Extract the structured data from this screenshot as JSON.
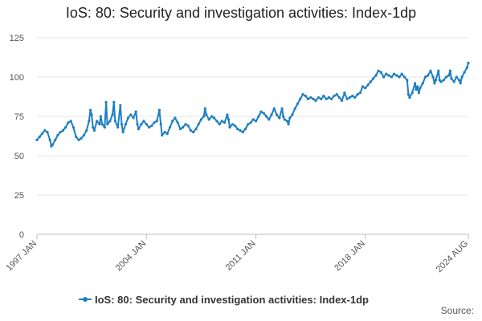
{
  "chart_data": {
    "type": "line",
    "title": "IoS: 80: Security and investigation activities: Index-1dp",
    "xlabel": "",
    "ylabel": "",
    "ylim": [
      0,
      125
    ],
    "y_ticks": [
      0,
      25,
      50,
      75,
      100,
      125
    ],
    "x_range": [
      1997.0,
      2024.583
    ],
    "x_ticks": [
      {
        "value": 1997.0,
        "label": "1997 JAN"
      },
      {
        "value": 2004.0,
        "label": "2004 JAN"
      },
      {
        "value": 2011.0,
        "label": "2011 JAN"
      },
      {
        "value": 2018.0,
        "label": "2018 JAN"
      },
      {
        "value": 2024.583,
        "label": "2024 AUG"
      }
    ],
    "grid": true,
    "legend_position": "bottom",
    "series": [
      {
        "name": "IoS: 80: Security and investigation activities: Index-1dp",
        "color": "#1f7fc0",
        "points": [
          [
            1997.0,
            60.0
          ],
          [
            1997.17,
            62.0
          ],
          [
            1997.33,
            64.0
          ],
          [
            1997.5,
            66.0
          ],
          [
            1997.67,
            65.0
          ],
          [
            1997.83,
            60.0
          ],
          [
            1997.92,
            56.0
          ],
          [
            1998.0,
            57.0
          ],
          [
            1998.17,
            60.0
          ],
          [
            1998.33,
            63.0
          ],
          [
            1998.5,
            65.0
          ],
          [
            1998.67,
            66.0
          ],
          [
            1998.83,
            68.0
          ],
          [
            1999.0,
            71.0
          ],
          [
            1999.17,
            72.0
          ],
          [
            1999.33,
            68.0
          ],
          [
            1999.5,
            62.0
          ],
          [
            1999.67,
            60.0
          ],
          [
            1999.83,
            61.0
          ],
          [
            2000.0,
            63.0
          ],
          [
            2000.17,
            66.0
          ],
          [
            2000.33,
            72.0
          ],
          [
            2000.42,
            79.0
          ],
          [
            2000.5,
            76.0
          ],
          [
            2000.58,
            68.0
          ],
          [
            2000.67,
            66.0
          ],
          [
            2000.83,
            72.0
          ],
          [
            2001.0,
            70.0
          ],
          [
            2001.08,
            75.0
          ],
          [
            2001.17,
            70.0
          ],
          [
            2001.33,
            68.0
          ],
          [
            2001.42,
            84.0
          ],
          [
            2001.5,
            70.0
          ],
          [
            2001.67,
            72.0
          ],
          [
            2001.83,
            76.0
          ],
          [
            2001.92,
            84.0
          ],
          [
            2002.0,
            72.0
          ],
          [
            2002.17,
            68.0
          ],
          [
            2002.33,
            82.0
          ],
          [
            2002.42,
            70.0
          ],
          [
            2002.5,
            65.0
          ],
          [
            2002.67,
            70.0
          ],
          [
            2002.83,
            74.0
          ],
          [
            2003.0,
            76.0
          ],
          [
            2003.17,
            74.0
          ],
          [
            2003.33,
            78.0
          ],
          [
            2003.42,
            70.0
          ],
          [
            2003.5,
            67.0
          ],
          [
            2003.67,
            70.0
          ],
          [
            2003.83,
            72.0
          ],
          [
            2004.0,
            70.0
          ],
          [
            2004.17,
            68.0
          ],
          [
            2004.33,
            69.0
          ],
          [
            2004.5,
            71.0
          ],
          [
            2004.67,
            72.0
          ],
          [
            2004.83,
            79.0
          ],
          [
            2004.92,
            70.0
          ],
          [
            2005.0,
            63.0
          ],
          [
            2005.17,
            65.0
          ],
          [
            2005.33,
            64.0
          ],
          [
            2005.5,
            68.0
          ],
          [
            2005.67,
            72.0
          ],
          [
            2005.83,
            74.0
          ],
          [
            2006.0,
            71.0
          ],
          [
            2006.17,
            67.0
          ],
          [
            2006.33,
            68.0
          ],
          [
            2006.5,
            70.0
          ],
          [
            2006.67,
            69.0
          ],
          [
            2006.83,
            66.0
          ],
          [
            2007.0,
            65.0
          ],
          [
            2007.17,
            67.0
          ],
          [
            2007.33,
            70.0
          ],
          [
            2007.5,
            73.0
          ],
          [
            2007.67,
            75.0
          ],
          [
            2007.75,
            80.0
          ],
          [
            2007.83,
            76.0
          ],
          [
            2008.0,
            73.0
          ],
          [
            2008.17,
            75.0
          ],
          [
            2008.33,
            74.0
          ],
          [
            2008.5,
            72.0
          ],
          [
            2008.67,
            70.0
          ],
          [
            2008.83,
            72.0
          ],
          [
            2009.0,
            71.0
          ],
          [
            2009.17,
            76.0
          ],
          [
            2009.25,
            73.0
          ],
          [
            2009.33,
            68.0
          ],
          [
            2009.5,
            70.0
          ],
          [
            2009.67,
            69.0
          ],
          [
            2009.83,
            67.0
          ],
          [
            2010.0,
            66.0
          ],
          [
            2010.17,
            65.0
          ],
          [
            2010.33,
            67.0
          ],
          [
            2010.5,
            70.0
          ],
          [
            2010.67,
            71.0
          ],
          [
            2010.83,
            73.0
          ],
          [
            2011.0,
            72.0
          ],
          [
            2011.17,
            75.0
          ],
          [
            2011.33,
            78.0
          ],
          [
            2011.5,
            77.0
          ],
          [
            2011.67,
            75.0
          ],
          [
            2011.83,
            73.0
          ],
          [
            2012.0,
            76.0
          ],
          [
            2012.17,
            80.0
          ],
          [
            2012.33,
            76.0
          ],
          [
            2012.5,
            74.0
          ],
          [
            2012.67,
            80.0
          ],
          [
            2012.75,
            75.0
          ],
          [
            2012.83,
            73.0
          ],
          [
            2013.0,
            72.0
          ],
          [
            2013.08,
            70.0
          ],
          [
            2013.17,
            74.0
          ],
          [
            2013.33,
            76.0
          ],
          [
            2013.5,
            80.0
          ],
          [
            2013.67,
            83.0
          ],
          [
            2013.83,
            86.0
          ],
          [
            2014.0,
            89.0
          ],
          [
            2014.17,
            88.0
          ],
          [
            2014.33,
            86.0
          ],
          [
            2014.5,
            87.0
          ],
          [
            2014.67,
            86.0
          ],
          [
            2014.83,
            85.0
          ],
          [
            2015.0,
            87.0
          ],
          [
            2015.17,
            86.0
          ],
          [
            2015.33,
            88.0
          ],
          [
            2015.5,
            86.0
          ],
          [
            2015.67,
            87.0
          ],
          [
            2015.83,
            86.0
          ],
          [
            2016.0,
            88.0
          ],
          [
            2016.17,
            89.0
          ],
          [
            2016.33,
            87.0
          ],
          [
            2016.5,
            85.0
          ],
          [
            2016.67,
            90.0
          ],
          [
            2016.83,
            86.0
          ],
          [
            2017.0,
            87.0
          ],
          [
            2017.17,
            88.0
          ],
          [
            2017.33,
            87.0
          ],
          [
            2017.5,
            89.0
          ],
          [
            2017.67,
            90.0
          ],
          [
            2017.83,
            94.0
          ],
          [
            2018.0,
            93.0
          ],
          [
            2018.17,
            95.0
          ],
          [
            2018.33,
            97.0
          ],
          [
            2018.5,
            99.0
          ],
          [
            2018.67,
            101.0
          ],
          [
            2018.83,
            104.0
          ],
          [
            2019.0,
            103.0
          ],
          [
            2019.17,
            100.0
          ],
          [
            2019.33,
            102.0
          ],
          [
            2019.5,
            101.0
          ],
          [
            2019.67,
            100.0
          ],
          [
            2019.83,
            102.0
          ],
          [
            2020.0,
            101.0
          ],
          [
            2020.17,
            100.0
          ],
          [
            2020.33,
            102.0
          ],
          [
            2020.5,
            100.0
          ],
          [
            2020.67,
            98.0
          ],
          [
            2020.75,
            89.0
          ],
          [
            2020.83,
            87.0
          ],
          [
            2021.0,
            90.0
          ],
          [
            2021.17,
            96.0
          ],
          [
            2021.25,
            92.0
          ],
          [
            2021.33,
            94.0
          ],
          [
            2021.42,
            90.0
          ],
          [
            2021.5,
            93.0
          ],
          [
            2021.67,
            96.0
          ],
          [
            2021.83,
            100.0
          ],
          [
            2022.0,
            101.0
          ],
          [
            2022.17,
            104.0
          ],
          [
            2022.33,
            100.0
          ],
          [
            2022.42,
            96.0
          ],
          [
            2022.5,
            98.0
          ],
          [
            2022.67,
            104.0
          ],
          [
            2022.75,
            98.0
          ],
          [
            2022.83,
            97.0
          ],
          [
            2023.0,
            98.0
          ],
          [
            2023.17,
            100.0
          ],
          [
            2023.33,
            101.0
          ],
          [
            2023.42,
            104.0
          ],
          [
            2023.5,
            99.0
          ],
          [
            2023.67,
            97.0
          ],
          [
            2023.83,
            100.0
          ],
          [
            2024.0,
            98.0
          ],
          [
            2024.08,
            96.0
          ],
          [
            2024.17,
            100.0
          ],
          [
            2024.33,
            103.0
          ],
          [
            2024.5,
            106.0
          ],
          [
            2024.583,
            109.0
          ]
        ]
      }
    ]
  },
  "footer": {
    "source_label": "Source:"
  }
}
